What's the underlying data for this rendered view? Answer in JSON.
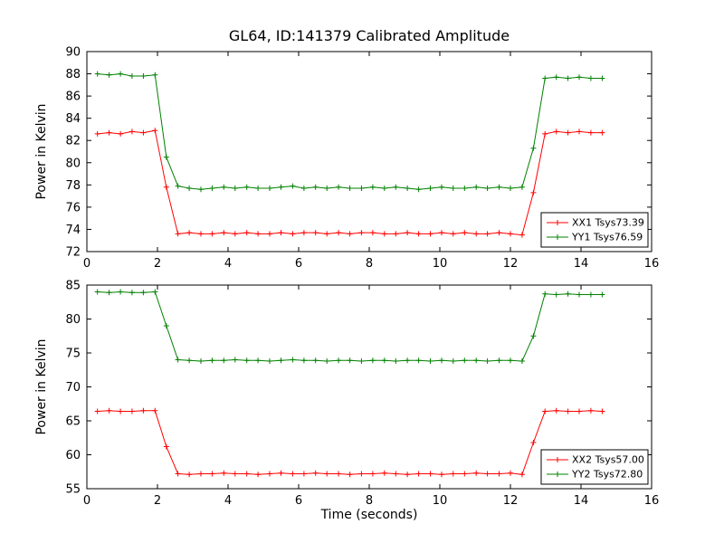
{
  "figure": {
    "title": "GL64, ID:141379 Calibrated Amplitude",
    "background": "#ffffff",
    "axis_color": "#000000"
  },
  "chart_data": [
    {
      "type": "line",
      "title": "",
      "xlabel": "",
      "ylabel": "Power in Kelvin",
      "xlim": [
        0,
        16
      ],
      "ylim": [
        72,
        90
      ],
      "xticks": [
        0,
        2,
        4,
        6,
        8,
        10,
        12,
        14,
        16
      ],
      "yticks": [
        72,
        74,
        76,
        78,
        80,
        82,
        84,
        86,
        88,
        90
      ],
      "grid": false,
      "legend_position": "lower right",
      "marker": "+",
      "x": [
        0.3,
        0.63,
        0.95,
        1.28,
        1.6,
        1.93,
        2.25,
        2.58,
        2.9,
        3.23,
        3.55,
        3.88,
        4.2,
        4.53,
        4.85,
        5.18,
        5.5,
        5.83,
        6.15,
        6.48,
        6.8,
        7.13,
        7.45,
        7.78,
        8.1,
        8.43,
        8.75,
        9.08,
        9.4,
        9.73,
        10.05,
        10.38,
        10.7,
        11.03,
        11.35,
        11.68,
        12.0,
        12.33,
        12.65,
        12.98,
        13.3,
        13.63,
        13.95,
        14.28,
        14.6
      ],
      "series": [
        {
          "name": "XX1 Tsys73.39",
          "color": "#ff0000",
          "y": [
            82.6,
            82.7,
            82.6,
            82.8,
            82.7,
            82.9,
            77.8,
            73.6,
            73.7,
            73.6,
            73.6,
            73.7,
            73.6,
            73.7,
            73.6,
            73.6,
            73.7,
            73.6,
            73.7,
            73.7,
            73.6,
            73.7,
            73.6,
            73.7,
            73.7,
            73.6,
            73.6,
            73.7,
            73.6,
            73.6,
            73.7,
            73.6,
            73.7,
            73.6,
            73.6,
            73.7,
            73.6,
            73.5,
            77.3,
            82.6,
            82.8,
            82.7,
            82.8,
            82.7,
            82.7
          ]
        },
        {
          "name": "YY1 Tsys76.59",
          "color": "#008000",
          "y": [
            88.0,
            87.9,
            88.0,
            87.8,
            87.8,
            87.9,
            80.5,
            77.9,
            77.7,
            77.6,
            77.7,
            77.8,
            77.7,
            77.8,
            77.7,
            77.7,
            77.8,
            77.9,
            77.7,
            77.8,
            77.7,
            77.8,
            77.7,
            77.7,
            77.8,
            77.7,
            77.8,
            77.7,
            77.6,
            77.7,
            77.8,
            77.7,
            77.7,
            77.8,
            77.7,
            77.8,
            77.7,
            77.8,
            81.3,
            87.6,
            87.7,
            87.6,
            87.7,
            87.6,
            87.6
          ]
        }
      ]
    },
    {
      "type": "line",
      "title": "",
      "xlabel": "Time (seconds)",
      "ylabel": "Power in Kelvin",
      "xlim": [
        0,
        16
      ],
      "ylim": [
        55,
        85
      ],
      "xticks": [
        0,
        2,
        4,
        6,
        8,
        10,
        12,
        14,
        16
      ],
      "yticks": [
        55,
        60,
        65,
        70,
        75,
        80,
        85
      ],
      "grid": false,
      "legend_position": "lower right",
      "marker": "+",
      "x": [
        0.3,
        0.63,
        0.95,
        1.28,
        1.6,
        1.93,
        2.25,
        2.58,
        2.9,
        3.23,
        3.55,
        3.88,
        4.2,
        4.53,
        4.85,
        5.18,
        5.5,
        5.83,
        6.15,
        6.48,
        6.8,
        7.13,
        7.45,
        7.78,
        8.1,
        8.43,
        8.75,
        9.08,
        9.4,
        9.73,
        10.05,
        10.38,
        10.7,
        11.03,
        11.35,
        11.68,
        12.0,
        12.33,
        12.65,
        12.98,
        13.3,
        13.63,
        13.95,
        14.28,
        14.6
      ],
      "series": [
        {
          "name": "XX2 Tsys57.00",
          "color": "#ff0000",
          "y": [
            66.4,
            66.5,
            66.4,
            66.4,
            66.5,
            66.5,
            61.2,
            57.2,
            57.1,
            57.2,
            57.2,
            57.3,
            57.2,
            57.2,
            57.1,
            57.2,
            57.3,
            57.2,
            57.2,
            57.3,
            57.2,
            57.2,
            57.1,
            57.2,
            57.2,
            57.3,
            57.2,
            57.1,
            57.2,
            57.2,
            57.1,
            57.2,
            57.2,
            57.3,
            57.2,
            57.2,
            57.3,
            57.1,
            61.8,
            66.4,
            66.5,
            66.4,
            66.4,
            66.5,
            66.4
          ]
        },
        {
          "name": "YY2 Tsys72.80",
          "color": "#008000",
          "y": [
            84.0,
            83.9,
            84.0,
            83.9,
            83.9,
            84.0,
            79.0,
            74.0,
            73.9,
            73.8,
            73.9,
            73.9,
            74.0,
            73.9,
            73.9,
            73.8,
            73.9,
            74.0,
            73.9,
            73.9,
            73.8,
            73.9,
            73.9,
            73.8,
            73.9,
            73.9,
            73.8,
            73.9,
            73.9,
            73.8,
            73.9,
            73.8,
            73.9,
            73.9,
            73.8,
            73.9,
            73.9,
            73.8,
            77.5,
            83.7,
            83.6,
            83.7,
            83.6,
            83.6,
            83.6
          ]
        }
      ]
    }
  ]
}
